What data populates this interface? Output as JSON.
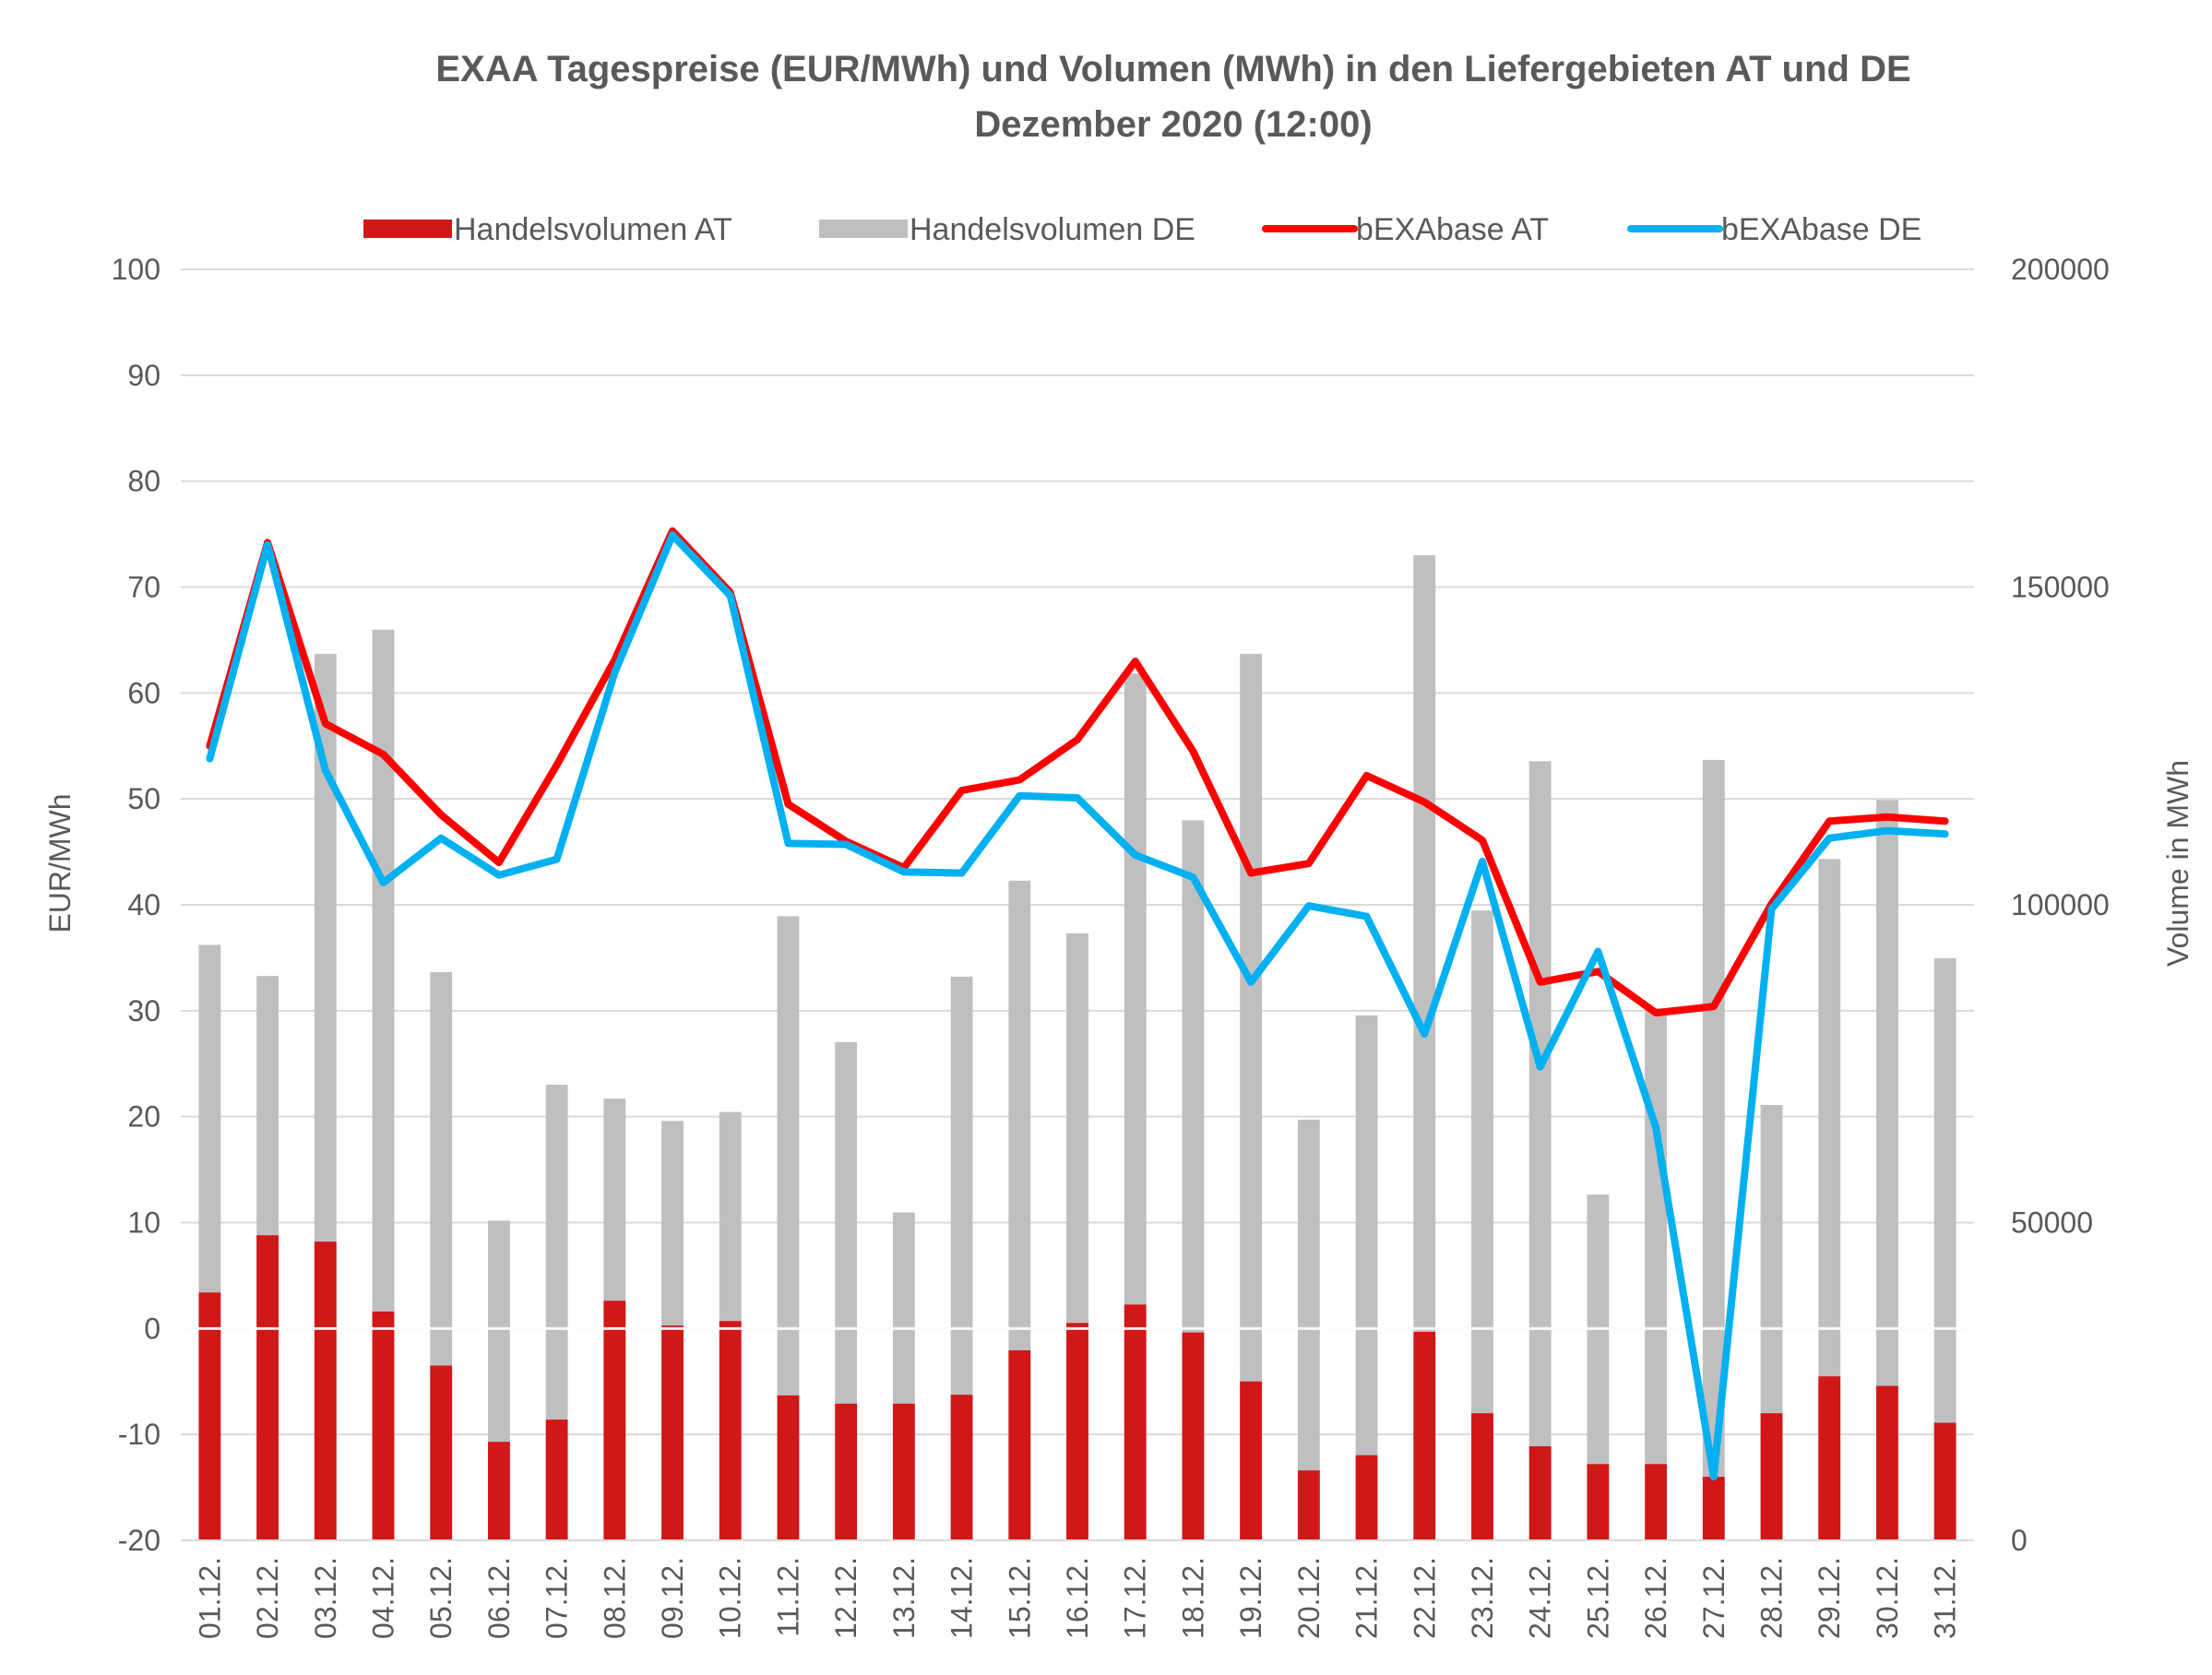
{
  "chart_data": {
    "type": "bar+line",
    "title": "EXAA Tagespreise (EUR/MWh) und Volumen (MWh) in den Liefergebieten AT und DE",
    "subtitle": "Dezember 2020 (12:00)",
    "ylabel": "EUR/MWh",
    "y2label": "Volume in MWh",
    "ylim": [
      -20,
      100
    ],
    "y2lim": [
      0,
      200000
    ],
    "yticks": [
      "-20",
      "-10",
      "0",
      "10",
      "20",
      "30",
      "40",
      "50",
      "60",
      "70",
      "80",
      "90",
      "100"
    ],
    "y2ticks": [
      "0",
      "50000",
      "100000",
      "150000",
      "200000"
    ],
    "grid": true,
    "legend_position": "top",
    "categories": [
      "01.12.",
      "02.12.",
      "03.12.",
      "04.12.",
      "05.12.",
      "06.12.",
      "07.12.",
      "08.12.",
      "09.12.",
      "10.12.",
      "11.12.",
      "12.12.",
      "13.12.",
      "14.12.",
      "15.12.",
      "16.12.",
      "17.12.",
      "18.12.",
      "19.12.",
      "20.12.",
      "21.12.",
      "22.12.",
      "23.12.",
      "24.12.",
      "25.12.",
      "26.12.",
      "27.12.",
      "28.12.",
      "29.12.",
      "30.12.",
      "31.12."
    ],
    "series": [
      {
        "name": "Handelsvolumen AT",
        "kind": "bar",
        "axis": "right",
        "color": "#d11717",
        "values": [
          39000,
          48000,
          47000,
          36000,
          27500,
          15500,
          19000,
          37700,
          33800,
          34500,
          22800,
          21500,
          21500,
          22900,
          29900,
          34200,
          37100,
          32700,
          25000,
          11000,
          13400,
          32800,
          20000,
          14800,
          12000,
          12000,
          10000,
          20000,
          25800,
          24300,
          18500
        ]
      },
      {
        "name": "Handelsvolumen DE",
        "kind": "bar",
        "axis": "right",
        "color": "#bfbfbf",
        "values": [
          93700,
          88800,
          139500,
          143300,
          89400,
          50300,
          71700,
          69500,
          66000,
          67400,
          98200,
          78400,
          51600,
          88700,
          103800,
          95500,
          136400,
          113300,
          139500,
          66200,
          82600,
          155000,
          99100,
          122600,
          54400,
          83700,
          122800,
          68500,
          107200,
          116500,
          91600
        ]
      },
      {
        "name": "bEXAbase AT",
        "kind": "line",
        "axis": "left",
        "color": "#ff0000",
        "values": [
          55,
          74.2,
          57.1,
          54.2,
          48.5,
          44,
          53.2,
          63.1,
          75.3,
          69.5,
          49.5,
          46,
          43.5,
          50.8,
          51.8,
          55.6,
          63,
          54.5,
          43,
          43.9,
          52.2,
          49.7,
          46.1,
          32.7,
          33.7,
          29.8,
          30.4,
          40.1,
          47.9,
          48.3,
          47.9
        ]
      },
      {
        "name": "bEXAbase DE",
        "kind": "line",
        "axis": "left",
        "color": "#00b0f0",
        "values": [
          53.8,
          74,
          52.7,
          42.1,
          46.3,
          42.8,
          44.3,
          61.9,
          74.9,
          69.2,
          45.8,
          45.7,
          43.1,
          43,
          50.3,
          50.1,
          44.7,
          42.6,
          32.7,
          39.9,
          38.9,
          27.8,
          44.1,
          24.7,
          35.6,
          19,
          -14,
          39.6,
          46.3,
          47,
          46.7
        ]
      }
    ]
  }
}
